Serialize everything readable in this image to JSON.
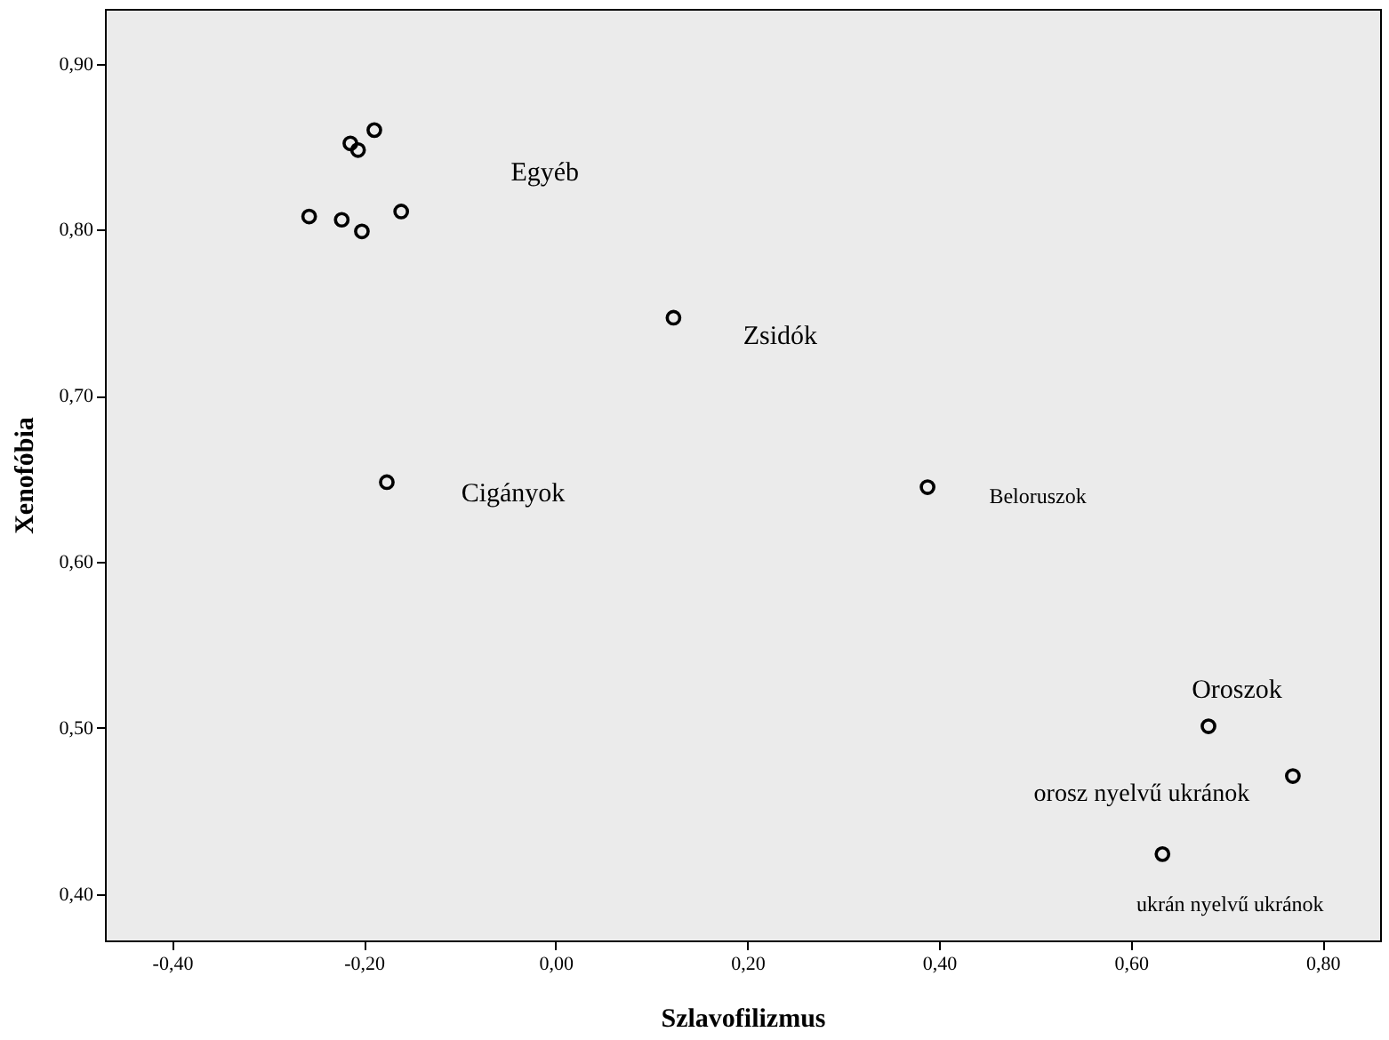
{
  "chart_data": {
    "type": "scatter",
    "xlabel": "Szlavofilizmus",
    "ylabel": "Xenofóbia",
    "x": [
      -0.189,
      -0.214,
      -0.206,
      -0.257,
      -0.223,
      -0.202,
      -0.161,
      0.123,
      -0.176,
      0.388,
      0.681,
      0.769,
      0.633
    ],
    "series": [
      {
        "color": "#000000",
        "values": [
          0.86,
          0.852,
          0.848,
          0.808,
          0.806,
          0.799,
          0.811,
          0.747,
          0.648,
          0.645,
          0.501,
          0.471,
          0.424
        ]
      }
    ],
    "xlim": [
      -0.47,
      0.86
    ],
    "ylim": [
      0.372,
      0.933
    ],
    "xticks": [
      {
        "value": -0.4,
        "label": "-0,40"
      },
      {
        "value": -0.2,
        "label": "-0,20"
      },
      {
        "value": 0,
        "label": "0,00"
      },
      {
        "value": 0.2,
        "label": "0,20"
      },
      {
        "value": 0.4,
        "label": "0,40"
      },
      {
        "value": 0.6,
        "label": "0,60"
      },
      {
        "value": 0.8,
        "label": "0,80"
      }
    ],
    "yticks": [
      {
        "value": 0.4,
        "label": "0,40"
      },
      {
        "value": 0.5,
        "label": "0,50"
      },
      {
        "value": 0.6,
        "label": "0,60"
      },
      {
        "value": 0.7,
        "label": "0,70"
      },
      {
        "value": 0.8,
        "label": "0,80"
      },
      {
        "value": 0.9,
        "label": "0,90"
      }
    ],
    "marker": "circle",
    "grid": false,
    "legend": false,
    "annotations": [
      "Egyéb",
      {
        "text": "Zsidók",
        "x": 0.123,
        "y": 0.747
      },
      {
        "text": "Cigányok",
        "x": -0.176,
        "y": 0.648
      },
      {
        "text": "Beloruszok",
        "x": 0.388,
        "y": 0.645
      },
      {
        "text": "Oroszok",
        "x": 0.681,
        "y": 0.501
      },
      {
        "text": "orosz nyelvű ukránok",
        "x": 0.769,
        "y": 0.471
      },
      {
        "text": "ukrán nyelvű ukránok",
        "x": 0.633,
        "y": 0.424
      }
    ]
  }
}
